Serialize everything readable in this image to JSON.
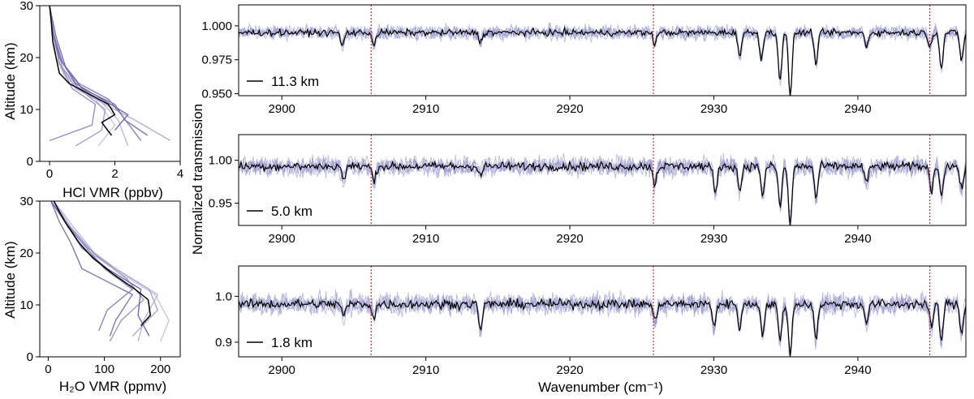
{
  "figure": {
    "colors": {
      "axis": "#000000",
      "profile_light": "#c7c7e2",
      "profile_dark": "#6f6aa8",
      "mean": "#000000",
      "spectra": "#8c8cc6",
      "marker": "#c0392b"
    }
  },
  "chart_data": [
    {
      "type": "line",
      "panel": "hcl-profile",
      "xlabel": "HCl VMR (ppbv)",
      "ylabel": "Altitude (km)",
      "xlim": [
        -0.3,
        4.0
      ],
      "ylim": [
        0,
        30
      ],
      "xticks": [
        "0",
        "2",
        "4"
      ],
      "yticks": [
        "0",
        "10",
        "20",
        "30"
      ],
      "mean": {
        "x": [
          1.9,
          1.6,
          2.0,
          1.8,
          1.2,
          0.6,
          0.3,
          0.2,
          0.1,
          0.05,
          0.0
        ],
        "y": [
          5,
          7.5,
          9,
          11,
          13,
          15,
          17,
          20,
          23,
          27,
          30
        ]
      },
      "series": [
        {
          "x": [
            1.5,
            2.0,
            1.4,
            0.5,
            0.2,
            0.1,
            0.0
          ],
          "y": [
            3,
            7,
            12,
            16,
            20,
            25,
            30
          ]
        },
        {
          "x": [
            2.4,
            2.1,
            1.5,
            0.7,
            0.3,
            0.1,
            0.0
          ],
          "y": [
            3,
            8,
            12,
            15,
            19,
            25,
            30
          ]
        },
        {
          "x": [
            3.7,
            2.6,
            1.7,
            0.8,
            0.4,
            0.15,
            0.0
          ],
          "y": [
            4,
            8,
            11,
            14,
            18,
            24,
            30
          ]
        },
        {
          "x": [
            0.8,
            1.6,
            1.7,
            0.9,
            0.4,
            0.1,
            0.0
          ],
          "y": [
            3,
            6,
            10,
            14,
            18,
            25,
            30
          ]
        },
        {
          "x": [
            0.0,
            1.3,
            1.4,
            0.7,
            0.3,
            0.1,
            0.0
          ],
          "y": [
            4,
            7,
            11,
            14,
            19,
            25,
            30
          ]
        },
        {
          "x": [
            2.8,
            2.2,
            1.8,
            0.9,
            0.4,
            0.1,
            0.0
          ],
          "y": [
            4,
            9,
            12,
            15,
            19,
            25,
            30
          ]
        },
        {
          "x": [
            3.0,
            2.3,
            2.0,
            1.0,
            0.5,
            0.2,
            0.0
          ],
          "y": [
            5,
            8,
            11,
            14,
            18,
            24,
            30
          ]
        },
        {
          "x": [
            2.0,
            2.4,
            1.6,
            0.8,
            0.3,
            0.1,
            0.0
          ],
          "y": [
            6,
            9,
            12,
            15,
            20,
            25,
            30
          ]
        }
      ]
    },
    {
      "type": "line",
      "panel": "h2o-profile",
      "xlabel": "H₂O VMR (ppmv)",
      "ylabel": "Altitude (km)",
      "xlim": [
        -15,
        235
      ],
      "ylim": [
        0,
        30
      ],
      "xticks": [
        "0",
        "100",
        "200"
      ],
      "yticks": [
        "0",
        "10",
        "20",
        "30"
      ],
      "mean": {
        "x": [
          165,
          182,
          178,
          155,
          115,
          80,
          55,
          30,
          10
        ],
        "y": [
          6,
          8,
          11,
          13,
          16,
          19,
          22,
          26,
          30
        ]
      },
      "series": [
        {
          "x": [
            200,
            215,
            190,
            130,
            75,
            40,
            10
          ],
          "y": [
            3,
            7,
            12,
            16,
            20,
            25,
            30
          ]
        },
        {
          "x": [
            160,
            170,
            195,
            150,
            90,
            45,
            10
          ],
          "y": [
            3,
            7,
            12,
            15,
            19,
            25,
            30
          ]
        },
        {
          "x": [
            150,
            195,
            180,
            120,
            70,
            35,
            10
          ],
          "y": [
            4,
            9,
            13,
            17,
            21,
            25,
            30
          ]
        },
        {
          "x": [
            110,
            130,
            170,
            140,
            80,
            40,
            5
          ],
          "y": [
            3,
            7,
            11,
            15,
            20,
            25,
            30
          ]
        },
        {
          "x": [
            90,
            105,
            150,
            100,
            60,
            30,
            5
          ],
          "y": [
            5,
            9,
            13,
            17,
            22,
            26,
            30
          ]
        },
        {
          "x": [
            110,
            120,
            150,
            60,
            40,
            20,
            5
          ],
          "y": [
            4,
            7,
            12,
            17,
            22,
            26,
            30
          ]
        },
        {
          "x": [
            180,
            160,
            165,
            105,
            60,
            30,
            5
          ],
          "y": [
            4,
            8,
            13,
            17,
            21,
            26,
            30
          ]
        }
      ]
    },
    {
      "type": "line",
      "panel": "spectrum-top",
      "legend": "11.3 km",
      "xlim": [
        2897,
        2947.5
      ],
      "ylim": [
        0.9485,
        1.0155
      ],
      "xticks": [
        "2900",
        "2910",
        "2920",
        "2930",
        "2940"
      ],
      "yticks": [
        "0.950",
        "0.975",
        "1.000"
      ],
      "ytick_values": [
        0.95,
        0.975,
        1.0
      ],
      "baseline": 0.995,
      "noise": 0.0028,
      "dips": [
        [
          2904.2,
          0.985
        ],
        [
          2906.4,
          0.986
        ],
        [
          2913.8,
          0.988
        ],
        [
          2925.9,
          0.987
        ],
        [
          2931.8,
          0.978
        ],
        [
          2933.3,
          0.976
        ],
        [
          2934.6,
          0.96
        ],
        [
          2935.3,
          0.948
        ],
        [
          2937.1,
          0.972
        ],
        [
          2940.6,
          0.985
        ],
        [
          2945.0,
          0.985
        ],
        [
          2945.8,
          0.968
        ],
        [
          2947.2,
          0.975
        ]
      ]
    },
    {
      "type": "line",
      "panel": "spectrum-middle",
      "legend": "5.0 km",
      "xlim": [
        2897,
        2947.5
      ],
      "ylim": [
        0.924,
        1.03
      ],
      "xticks": [
        "2900",
        "2910",
        "2920",
        "2930",
        "2940"
      ],
      "yticks": [
        "0.95",
        "1.00"
      ],
      "ytick_values": [
        0.95,
        1.0
      ],
      "baseline": 0.993,
      "noise": 0.006,
      "dips": [
        [
          2904.3,
          0.978
        ],
        [
          2906.4,
          0.975
        ],
        [
          2913.8,
          0.982
        ],
        [
          2925.9,
          0.972
        ],
        [
          2930.1,
          0.96
        ],
        [
          2931.8,
          0.964
        ],
        [
          2933.4,
          0.958
        ],
        [
          2934.6,
          0.945
        ],
        [
          2935.3,
          0.924
        ],
        [
          2937.1,
          0.955
        ],
        [
          2940.6,
          0.972
        ],
        [
          2945.1,
          0.965
        ],
        [
          2945.8,
          0.96
        ],
        [
          2947.2,
          0.965
        ]
      ]
    },
    {
      "type": "line",
      "panel": "spectrum-bottom",
      "legend": "1.8 km",
      "xlim": [
        2897,
        2947.5
      ],
      "ylim": [
        0.868,
        1.066
      ],
      "xticks": [
        "2900",
        "2910",
        "2920",
        "2930",
        "2940"
      ],
      "yticks": [
        "0.9",
        "1.0"
      ],
      "ytick_values": [
        0.9,
        1.0
      ],
      "baseline": 0.983,
      "noise": 0.012,
      "dips": [
        [
          2904.3,
          0.955
        ],
        [
          2906.4,
          0.95
        ],
        [
          2913.8,
          0.925
        ],
        [
          2925.9,
          0.945
        ],
        [
          2930.0,
          0.935
        ],
        [
          2931.8,
          0.93
        ],
        [
          2933.4,
          0.915
        ],
        [
          2934.6,
          0.9
        ],
        [
          2935.3,
          0.87
        ],
        [
          2937.1,
          0.905
        ],
        [
          2940.6,
          0.94
        ],
        [
          2945.1,
          0.93
        ],
        [
          2945.8,
          0.905
        ],
        [
          2947.2,
          0.92
        ]
      ]
    }
  ],
  "shared": {
    "xlabel": "Wavenumber (cm⁻¹)",
    "ylabel": "Normalized transmission",
    "marker_lines": [
      2906.2,
      2925.8,
      2945.0
    ]
  }
}
